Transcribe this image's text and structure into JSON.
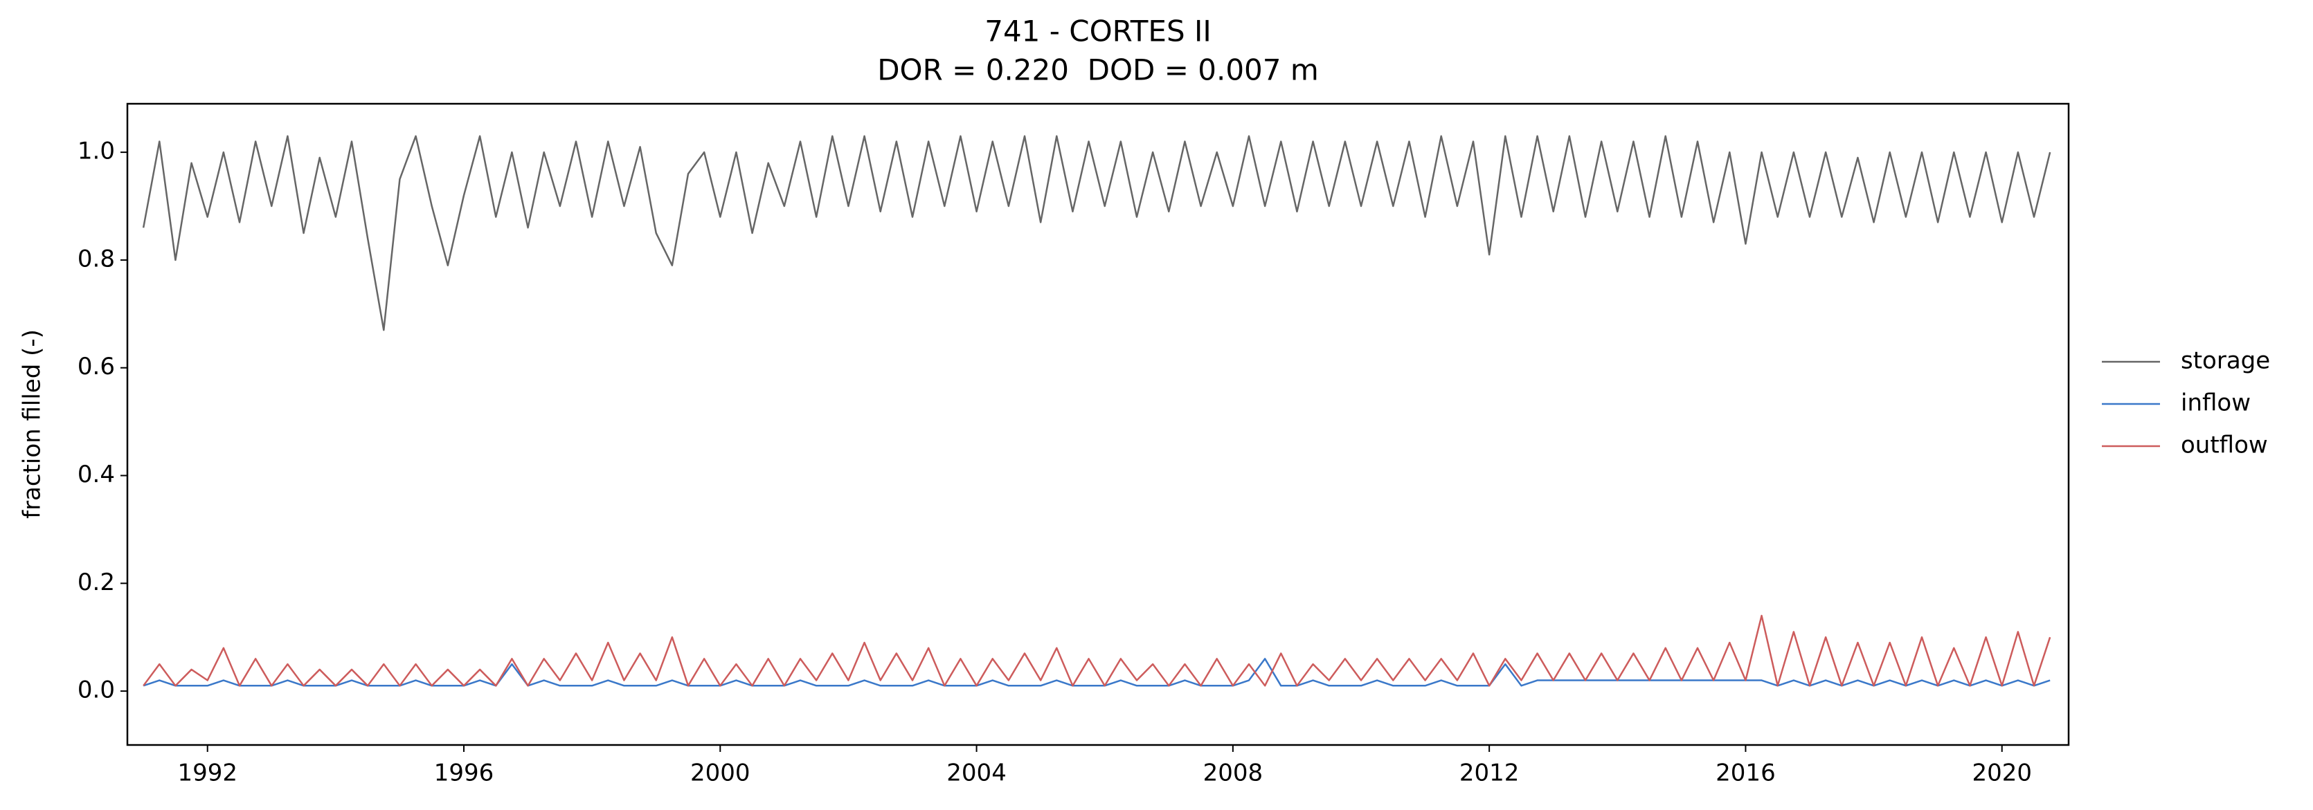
{
  "chart_data": {
    "type": "line",
    "title": "741 - CORTES II",
    "subtitle": "DOR = 0.220  DOD = 0.007 m",
    "y_label": "fraction filled (-)",
    "xlim": [
      1990.75,
      2021.04
    ],
    "ylim": [
      -0.1,
      1.09
    ],
    "xticks": [
      1992,
      1996,
      2000,
      2004,
      2008,
      2012,
      2016,
      2020
    ],
    "yticks": [
      {
        "value": 0,
        "label": "0.0"
      },
      0.2,
      0.4,
      0.6,
      0.8,
      {
        "value": 1,
        "label": "1.0"
      }
    ],
    "grid": false,
    "legend": "right",
    "x": [
      1991,
      1991.25,
      1991.5,
      1991.75,
      1992,
      1992.25,
      1992.5,
      1992.75,
      1993,
      1993.25,
      1993.5,
      1993.75,
      1994,
      1994.25,
      1994.5,
      1994.75,
      1995,
      1995.25,
      1995.5,
      1995.75,
      1996,
      1996.25,
      1996.5,
      1996.75,
      1997,
      1997.25,
      1997.5,
      1997.75,
      1998,
      1998.25,
      1998.5,
      1998.75,
      1999,
      1999.25,
      1999.5,
      1999.75,
      2000,
      2000.25,
      2000.5,
      2000.75,
      2001,
      2001.25,
      2001.5,
      2001.75,
      2002,
      2002.25,
      2002.5,
      2002.75,
      2003,
      2003.25,
      2003.5,
      2003.75,
      2004,
      2004.25,
      2004.5,
      2004.75,
      2005,
      2005.25,
      2005.5,
      2005.75,
      2006,
      2006.25,
      2006.5,
      2006.75,
      2007,
      2007.25,
      2007.5,
      2007.75,
      2008,
      2008.25,
      2008.5,
      2008.75,
      2009,
      2009.25,
      2009.5,
      2009.75,
      2010,
      2010.25,
      2010.5,
      2010.75,
      2011,
      2011.25,
      2011.5,
      2011.75,
      2012,
      2012.25,
      2012.5,
      2012.75,
      2013,
      2013.25,
      2013.5,
      2013.75,
      2014,
      2014.25,
      2014.5,
      2014.75,
      2015,
      2015.25,
      2015.5,
      2015.75,
      2016,
      2016.25,
      2016.5,
      2016.75,
      2017,
      2017.25,
      2017.5,
      2017.75,
      2018,
      2018.25,
      2018.5,
      2018.75,
      2019,
      2019.25,
      2019.5,
      2019.75,
      2020,
      2020.25,
      2020.5,
      2020.75
    ],
    "series": [
      {
        "name": "storage",
        "color": "#666666",
        "values": [
          0.86,
          1.02,
          0.8,
          0.98,
          0.88,
          1.0,
          0.87,
          1.02,
          0.9,
          1.03,
          0.85,
          0.99,
          0.88,
          1.02,
          0.84,
          0.67,
          0.95,
          1.03,
          0.9,
          0.79,
          0.92,
          1.03,
          0.88,
          1.0,
          0.86,
          1.0,
          0.9,
          1.02,
          0.88,
          1.02,
          0.9,
          1.01,
          0.85,
          0.79,
          0.96,
          1.0,
          0.88,
          1.0,
          0.85,
          0.98,
          0.9,
          1.02,
          0.88,
          1.03,
          0.9,
          1.03,
          0.89,
          1.02,
          0.88,
          1.02,
          0.9,
          1.03,
          0.89,
          1.02,
          0.9,
          1.03,
          0.87,
          1.03,
          0.89,
          1.02,
          0.9,
          1.02,
          0.88,
          1.0,
          0.89,
          1.02,
          0.9,
          1.0,
          0.9,
          1.03,
          0.9,
          1.02,
          0.89,
          1.02,
          0.9,
          1.02,
          0.9,
          1.02,
          0.9,
          1.02,
          0.88,
          1.03,
          0.9,
          1.02,
          0.81,
          1.03,
          0.88,
          1.03,
          0.89,
          1.03,
          0.88,
          1.02,
          0.89,
          1.02,
          0.88,
          1.03,
          0.88,
          1.02,
          0.87,
          1.0,
          0.83,
          1.0,
          0.88,
          1.0,
          0.88,
          1.0,
          0.88,
          0.99,
          0.87,
          1.0,
          0.88,
          1.0,
          0.87,
          1.0,
          0.88,
          1.0,
          0.87,
          1.0,
          0.88,
          1.0
        ]
      },
      {
        "name": "inflow",
        "color": "#3a78c9",
        "values": [
          0.01,
          0.02,
          0.01,
          0.01,
          0.01,
          0.02,
          0.01,
          0.01,
          0.01,
          0.02,
          0.01,
          0.01,
          0.01,
          0.02,
          0.01,
          0.01,
          0.01,
          0.02,
          0.01,
          0.01,
          0.01,
          0.02,
          0.01,
          0.05,
          0.01,
          0.02,
          0.01,
          0.01,
          0.01,
          0.02,
          0.01,
          0.01,
          0.01,
          0.02,
          0.01,
          0.01,
          0.01,
          0.02,
          0.01,
          0.01,
          0.01,
          0.02,
          0.01,
          0.01,
          0.01,
          0.02,
          0.01,
          0.01,
          0.01,
          0.02,
          0.01,
          0.01,
          0.01,
          0.02,
          0.01,
          0.01,
          0.01,
          0.02,
          0.01,
          0.01,
          0.01,
          0.02,
          0.01,
          0.01,
          0.01,
          0.02,
          0.01,
          0.01,
          0.01,
          0.02,
          0.06,
          0.01,
          0.01,
          0.02,
          0.01,
          0.01,
          0.01,
          0.02,
          0.01,
          0.01,
          0.01,
          0.02,
          0.01,
          0.01,
          0.01,
          0.05,
          0.01,
          0.02,
          0.02,
          0.02,
          0.02,
          0.02,
          0.02,
          0.02,
          0.02,
          0.02,
          0.02,
          0.02,
          0.02,
          0.02,
          0.02,
          0.02,
          0.01,
          0.02,
          0.01,
          0.02,
          0.01,
          0.02,
          0.01,
          0.02,
          0.01,
          0.02,
          0.01,
          0.02,
          0.01,
          0.02,
          0.01,
          0.02,
          0.01,
          0.02
        ]
      },
      {
        "name": "outflow",
        "color": "#cd5c5c",
        "values": [
          0.01,
          0.05,
          0.01,
          0.04,
          0.02,
          0.08,
          0.01,
          0.06,
          0.01,
          0.05,
          0.01,
          0.04,
          0.01,
          0.04,
          0.01,
          0.05,
          0.01,
          0.05,
          0.01,
          0.04,
          0.01,
          0.04,
          0.01,
          0.06,
          0.01,
          0.06,
          0.02,
          0.07,
          0.02,
          0.09,
          0.02,
          0.07,
          0.02,
          0.1,
          0.01,
          0.06,
          0.01,
          0.05,
          0.01,
          0.06,
          0.01,
          0.06,
          0.02,
          0.07,
          0.02,
          0.09,
          0.02,
          0.07,
          0.02,
          0.08,
          0.01,
          0.06,
          0.01,
          0.06,
          0.02,
          0.07,
          0.02,
          0.08,
          0.01,
          0.06,
          0.01,
          0.06,
          0.02,
          0.05,
          0.01,
          0.05,
          0.01,
          0.06,
          0.01,
          0.05,
          0.01,
          0.07,
          0.01,
          0.05,
          0.02,
          0.06,
          0.02,
          0.06,
          0.02,
          0.06,
          0.02,
          0.06,
          0.02,
          0.07,
          0.01,
          0.06,
          0.02,
          0.07,
          0.02,
          0.07,
          0.02,
          0.07,
          0.02,
          0.07,
          0.02,
          0.08,
          0.02,
          0.08,
          0.02,
          0.09,
          0.02,
          0.14,
          0.01,
          0.11,
          0.01,
          0.1,
          0.01,
          0.09,
          0.01,
          0.09,
          0.01,
          0.1,
          0.01,
          0.08,
          0.01,
          0.1,
          0.01,
          0.11,
          0.01,
          0.1
        ]
      }
    ]
  }
}
